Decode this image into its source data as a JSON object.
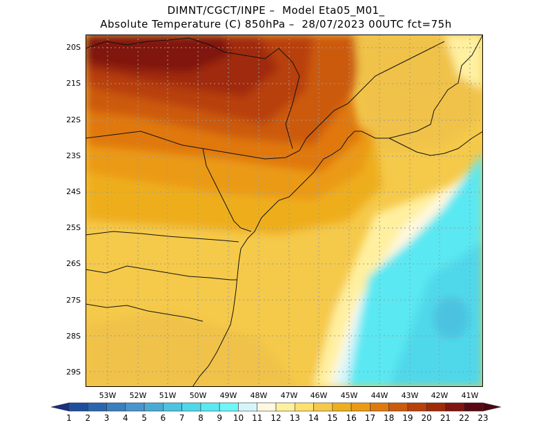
{
  "header": {
    "line1": "DIMNT/CGCT/INPE –  Model Eta05_M01_",
    "line2": "Absolute Temperature (C) 850hPa –  28/07/2023 00UTC fct=75h"
  },
  "map": {
    "region": "South-east / South Brazil and adjacent Atlantic Ocean",
    "lat_labels": [
      "20S",
      "21S",
      "22S",
      "23S",
      "24S",
      "25S",
      "26S",
      "27S",
      "28S",
      "29S"
    ],
    "lon_labels": [
      "53W",
      "52W",
      "51W",
      "50W",
      "49W",
      "48W",
      "47W",
      "46W",
      "45W",
      "44W",
      "43W",
      "42W",
      "41W"
    ]
  },
  "colorbar": {
    "labels": [
      "1",
      "2",
      "3",
      "4",
      "5",
      "6",
      "7",
      "8",
      "9",
      "10",
      "11",
      "12",
      "13",
      "14",
      "15",
      "16",
      "17",
      "18",
      "19",
      "20",
      "21",
      "22",
      "23"
    ],
    "colors": [
      "#1a3a8a",
      "#1f4e9c",
      "#2a66ad",
      "#3a7fbf",
      "#4a95cc",
      "#4aaad6",
      "#4cc3e0",
      "#4fd8ea",
      "#5ae8f2",
      "#6ef7f8",
      "#d6f5fb",
      "#fff8e0",
      "#fff0a0",
      "#ffe06e",
      "#f5c94a",
      "#eeae1e",
      "#eb9a12",
      "#e07810",
      "#cc5a0c",
      "#b8400a",
      "#a02a08",
      "#801410",
      "#5a0812"
    ],
    "low_arrow_color": "#1a2e80",
    "high_arrow_color": "#4a0610"
  },
  "field": {
    "max_temp_region": "north-west interior (~21-22 C)",
    "min_temp_region": "south-east ocean (~8-9 C)"
  }
}
